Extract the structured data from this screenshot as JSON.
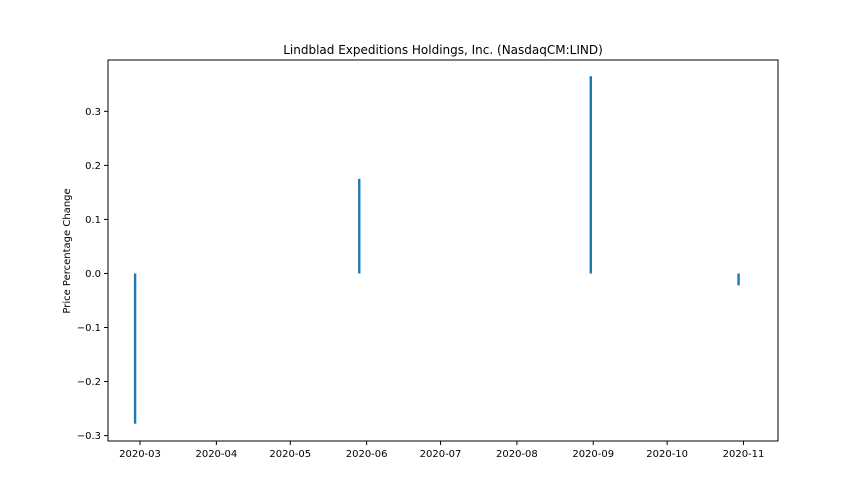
{
  "chart_data": {
    "type": "bar",
    "title": "Lindblad Expeditions Holdings, Inc. (NasdaqCM:LIND)",
    "xlabel": "",
    "ylabel": "Price Percentage Change",
    "x": [
      "2020-02-28",
      "2020-05-29",
      "2020-08-31",
      "2020-10-30"
    ],
    "values": [
      -0.278,
      0.175,
      0.365,
      -0.022
    ],
    "xlim": [
      "2020-02-17",
      "2020-11-15"
    ],
    "ylim": [
      -0.31,
      0.395
    ],
    "xticks": [
      "2020-03",
      "2020-04",
      "2020-05",
      "2020-06",
      "2020-07",
      "2020-08",
      "2020-09",
      "2020-10",
      "2020-11"
    ],
    "yticks": [
      -0.3,
      -0.2,
      -0.1,
      0.0,
      0.1,
      0.2,
      0.3
    ],
    "ytick_labels": [
      "−0.3",
      "−0.2",
      "−0.1",
      "0.0",
      "0.1",
      "0.2",
      "0.3"
    ],
    "bar_color": "#1f77b4",
    "grid": false,
    "legend": "none"
  }
}
